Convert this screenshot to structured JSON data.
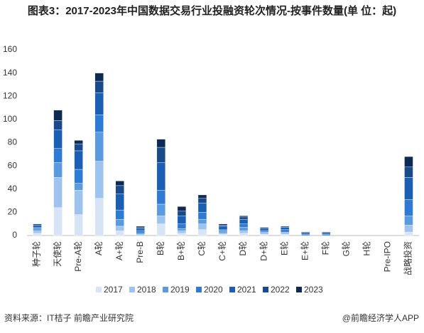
{
  "chart_data": {
    "type": "stacked_bar",
    "title": "图表3：2017-2023年中国数据交易行业投融资轮次情况-按事件数量(单 位：起)",
    "categories": [
      "种子轮",
      "天使轮",
      "Pre-A轮",
      "A轮",
      "A+轮",
      "Pre-B",
      "B轮",
      "B+轮",
      "C轮",
      "C+轮",
      "D轮",
      "D+轮",
      "E轮",
      "E+轮",
      "F轮",
      "G轮",
      "H轮",
      "Pre-IPO",
      "战略投资"
    ],
    "series": [
      {
        "name": "2017",
        "color": "#d6e4f5",
        "values": [
          2,
          24,
          18,
          32,
          4,
          0,
          10,
          2,
          5,
          1,
          2,
          1,
          1,
          0,
          0,
          0,
          0,
          0,
          3
        ]
      },
      {
        "name": "2018",
        "color": "#9dc3ee",
        "values": [
          2,
          26,
          21,
          32,
          4,
          1,
          7,
          2,
          5,
          1,
          2,
          1,
          1,
          0,
          0,
          0,
          0,
          0,
          6
        ]
      },
      {
        "name": "2019",
        "color": "#5a9be0",
        "values": [
          2,
          13,
          6,
          25,
          6,
          1,
          10,
          2,
          4,
          2,
          3,
          1,
          1,
          0,
          0,
          0,
          0,
          0,
          8
        ]
      },
      {
        "name": "2020",
        "color": "#2e7bd6",
        "values": [
          1,
          12,
          12,
          15,
          8,
          2,
          12,
          4,
          6,
          1,
          3,
          1,
          2,
          1,
          1,
          0,
          0,
          0,
          14
        ]
      },
      {
        "name": "2021",
        "color": "#1a5fb4",
        "values": [
          2,
          16,
          16,
          19,
          14,
          2,
          24,
          7,
          8,
          3,
          4,
          2,
          2,
          1,
          1,
          0,
          0,
          0,
          19
        ]
      },
      {
        "name": "2022",
        "color": "#1a4a8a",
        "values": [
          1,
          8,
          6,
          10,
          7,
          1,
          13,
          4,
          4,
          1,
          2,
          1,
          1,
          1,
          1,
          0,
          0,
          0,
          9
        ]
      },
      {
        "name": "2023",
        "color": "#0d2a55",
        "values": [
          0,
          9,
          3,
          7,
          4,
          1,
          7,
          4,
          3,
          1,
          1,
          0,
          0,
          0,
          0,
          0,
          0,
          0,
          9
        ]
      }
    ],
    "ylim": [
      0,
      160
    ],
    "yticks": [
      0,
      20,
      40,
      60,
      80,
      100,
      120,
      140,
      160
    ],
    "source": "资料来源：IT桔子 前瞻产业研究院",
    "credit": "@前瞻经济学人APP"
  }
}
